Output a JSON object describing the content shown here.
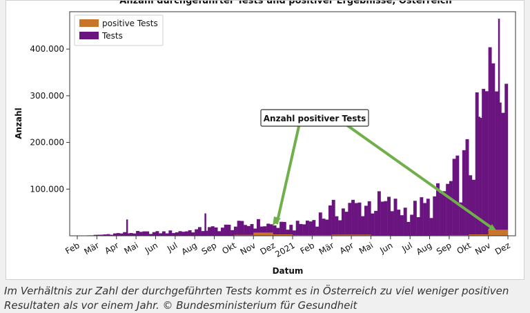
{
  "chart_data": {
    "type": "bar",
    "title": "Anzahl durchgeführter Tests und positiver Ergebnisse, Österreich",
    "xlabel": "Datum",
    "ylabel": "Anzahl",
    "ylim": [
      0,
      480000
    ],
    "yticks": [
      100000,
      200000,
      300000,
      400000
    ],
    "ytick_labels": [
      "100.000",
      "200.000",
      "300.000",
      "400.000"
    ],
    "xtick_labels": [
      "Feb",
      "Mär",
      "Apr",
      "Mai",
      "Jun",
      "Jul",
      "Aug",
      "Sep",
      "Okt",
      "Nov",
      "Dez",
      "2021",
      "Feb",
      "Mär",
      "Apr",
      "Mai",
      "Jun",
      "Jul",
      "Aug",
      "Sep",
      "Okt",
      "Nov",
      "Dez"
    ],
    "legend_position": "top-left",
    "grid": false,
    "series": [
      {
        "name": "positive Tests",
        "color": "#c8742a",
        "monthly": [
          "Feb 2020",
          "Mär 2020",
          "Apr 2020",
          "Mai 2020",
          "Jun 2020",
          "Jul 2020",
          "Aug 2020",
          "Sep 2020",
          "Okt 2020",
          "Nov 2020",
          "Dez 2020",
          "Jan 2021",
          "Feb 2021",
          "Mär 2021",
          "Apr 2021",
          "Mai 2021",
          "Jun 2021",
          "Jul 2021",
          "Aug 2021",
          "Sep 2021",
          "Okt 2021",
          "Nov 2021"
        ],
        "values": [
          0,
          200,
          300,
          50,
          50,
          100,
          200,
          500,
          2000,
          7000,
          3000,
          1500,
          1500,
          2500,
          2500,
          1000,
          200,
          300,
          1000,
          1500,
          3000,
          13000
        ]
      },
      {
        "name": "Tests",
        "color": "#6a1480",
        "monthly": [
          "Feb 2020",
          "Mär 2020",
          "Apr 2020",
          "Mai 2020",
          "Jun 2020",
          "Jul 2020",
          "Aug 2020",
          "Sep 2020",
          "Okt 2020",
          "Nov 2020",
          "Dez 2020",
          "Jan 2021",
          "Feb 2021",
          "Mär 2021",
          "Apr 2021",
          "Mai 2021",
          "Jun 2021",
          "Jul 2021",
          "Aug 2021",
          "Sep 2021",
          "Okt 2021",
          "Nov 2021"
        ],
        "values": [
          200,
          2000,
          6000,
          8000,
          8000,
          10000,
          14000,
          18000,
          24000,
          30000,
          25000,
          22000,
          40000,
          60000,
          70000,
          80000,
          70000,
          60000,
          75000,
          120000,
          180000,
          350000
        ],
        "peaks": [
          {
            "date": "Apr 2020",
            "value": 35000
          },
          {
            "date": "Aug 2020",
            "value": 48000
          },
          {
            "date": "Okt 2021",
            "value": 255000
          },
          {
            "date": "Nov 2021",
            "value": 465000
          }
        ]
      }
    ],
    "annotation": {
      "text": "Anzahl positiver Tests",
      "color": "#6fb04a"
    }
  },
  "caption": "Im Verhältnis zur Zahl der durchgeführten Tests kommt es in Österreich zu viel weniger positiven Resultaten als vor einem Jahr. © Bundesministerium für Gesundheit"
}
